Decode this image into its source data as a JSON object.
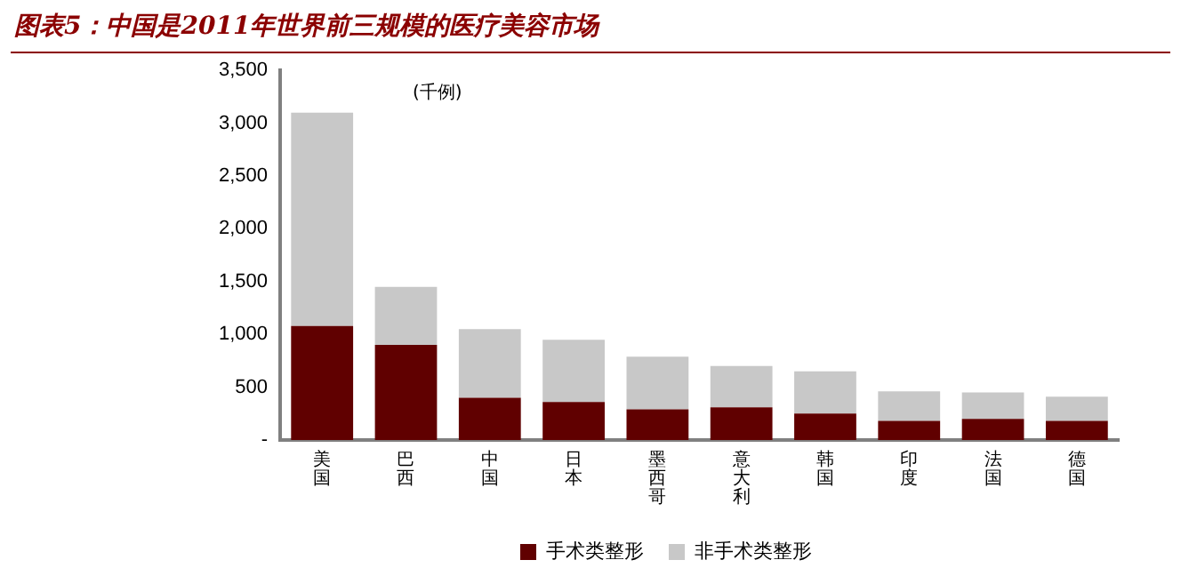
{
  "chart_data": {
    "type": "bar",
    "title": "图表5：中国是2011年世界前三规模的医疗美容市场",
    "annotations": [
      "(千例)"
    ],
    "categories": [
      "美国",
      "巴西",
      "中国",
      "日本",
      "墨西哥",
      "意大利",
      "韩国",
      "印度",
      "法国",
      "德国"
    ],
    "stacked": true,
    "series": [
      {
        "name": "手术类整形",
        "color": "#600000",
        "values": [
          1080,
          900,
          400,
          360,
          290,
          310,
          250,
          180,
          200,
          180
        ]
      },
      {
        "name": "非手术类整形",
        "color": "#c8c8c8",
        "values": [
          2020,
          550,
          650,
          590,
          500,
          390,
          400,
          280,
          250,
          230
        ]
      }
    ],
    "ylim": [
      0,
      3500
    ],
    "yticks": [
      {
        "value": 0,
        "label": "-"
      },
      {
        "value": 500,
        "label": "500"
      },
      {
        "value": 1000,
        "label": "1,000"
      },
      {
        "value": 1500,
        "label": "1,500"
      },
      {
        "value": 2000,
        "label": "2,000"
      },
      {
        "value": 2500,
        "label": "2,500"
      },
      {
        "value": 3000,
        "label": "3,000"
      },
      {
        "value": 3500,
        "label": "3,500"
      }
    ],
    "grid": false,
    "legend": "bottom"
  }
}
